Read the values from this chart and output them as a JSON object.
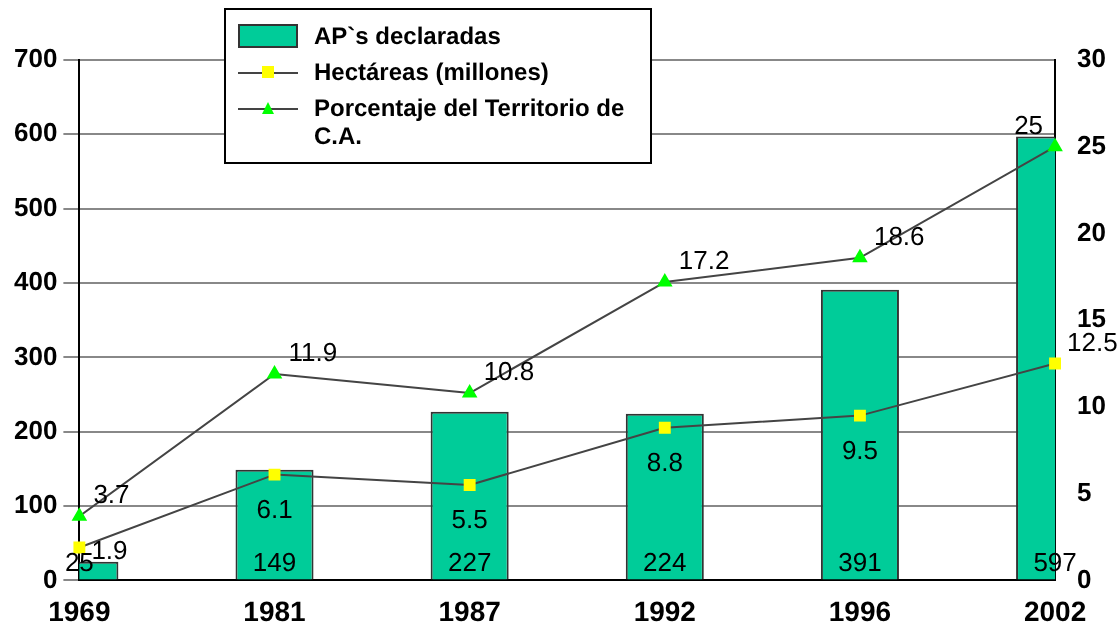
{
  "chart_data": {
    "type": "bar",
    "categories": [
      "1969",
      "1981",
      "1987",
      "1992",
      "1996",
      "2002"
    ],
    "series": [
      {
        "name": "AP`s declaradas",
        "color": "#00cc99",
        "values": [
          25,
          149,
          227,
          224,
          391,
          597
        ]
      },
      {
        "name": "Hectáreas (millones)",
        "type": "line",
        "axis": "y2",
        "color": "#ffff00",
        "marker": "square",
        "values": [
          1.9,
          6.1,
          5.5,
          8.8,
          9.5,
          12.5
        ]
      },
      {
        "name": "Porcentaje del Territorio de C.A.",
        "type": "line",
        "axis": "y2",
        "color": "#00ff00",
        "marker": "triangle",
        "values": [
          3.7,
          11.9,
          10.8,
          17.2,
          18.6,
          25
        ]
      }
    ],
    "ylim": [
      0,
      700
    ],
    "yticks": [
      0,
      100,
      200,
      300,
      400,
      500,
      600,
      700
    ],
    "y2lim": [
      0,
      30
    ],
    "y2ticks": [
      0,
      5,
      10,
      15,
      20,
      25,
      30
    ],
    "grid": "y",
    "legend": "top left",
    "data_labels": true
  }
}
